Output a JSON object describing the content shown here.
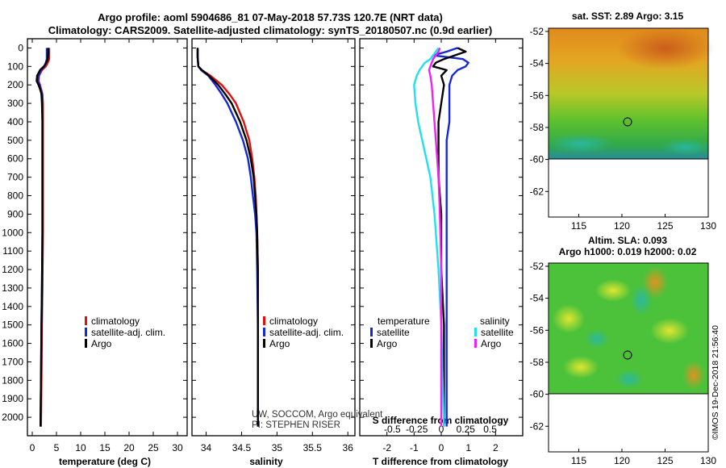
{
  "title": {
    "line1": "Argo profile: aoml 5904686_81 07-May-2018 57.73S 120.7E (NRT data)",
    "line2": "Climatology: CARS2009. Satellite-adjusted climatology: synTS_20180507.nc (0.9d earlier)"
  },
  "depth_ticks": [
    "0",
    "100",
    "200",
    "300",
    "400",
    "500",
    "600",
    "700",
    "800",
    "900",
    "1000",
    "1100",
    "1200",
    "1300",
    "1400",
    "1500",
    "1600",
    "1700",
    "1800",
    "1900",
    "2000"
  ],
  "colors": {
    "climatology": "#e01010",
    "satellite": "#1428d8",
    "argo": "#000000",
    "sat_diff": "#20e0f0",
    "argo_s_diff": "#f020f0"
  },
  "chart_data": [
    {
      "type": "line",
      "name": "temperature",
      "xlabel": "temperature (deg C)",
      "xlim": [
        -1,
        32
      ],
      "ylim": [
        2100,
        -50
      ],
      "xticks": [
        "0",
        "5",
        "10",
        "15",
        "20",
        "25",
        "30"
      ],
      "xtick_values": [
        0,
        5,
        10,
        15,
        20,
        25,
        30
      ],
      "depth": [
        0,
        30,
        60,
        80,
        100,
        120,
        150,
        180,
        200,
        230,
        250,
        300,
        400,
        500,
        700,
        1000,
        1300,
        1500,
        1800,
        2050
      ],
      "series": [
        {
          "name": "climatology",
          "values": [
            3.5,
            3.5,
            3.5,
            3.2,
            2.8,
            2.0,
            1.4,
            1.3,
            1.6,
            1.9,
            2.1,
            2.2,
            2.2,
            2.2,
            2.2,
            2.2,
            2.1,
            2.0,
            1.9,
            1.8
          ]
        },
        {
          "name": "satellite-adj. clim.",
          "values": [
            3.0,
            3.0,
            3.0,
            2.8,
            2.5,
            1.8,
            1.3,
            1.2,
            1.5,
            1.8,
            2.0,
            2.1,
            2.1,
            2.1,
            2.1,
            2.1,
            2.0,
            1.9,
            1.8,
            1.7
          ]
        },
        {
          "name": "Argo",
          "values": [
            3.3,
            3.3,
            3.2,
            2.9,
            2.4,
            1.6,
            1.0,
            0.9,
            1.3,
            1.7,
            1.9,
            2.0,
            2.1,
            2.1,
            2.1,
            2.1,
            2.0,
            1.9,
            1.8,
            1.7
          ]
        }
      ],
      "legend": [
        "climatology",
        "satellite-adj. clim.",
        "Argo"
      ]
    },
    {
      "type": "line",
      "name": "salinity",
      "xlabel": "salinity",
      "xlim": [
        33.8,
        36.1
      ],
      "ylim": [
        2100,
        -50
      ],
      "xticks": [
        "34",
        "34.5",
        "35",
        "35.5",
        "36"
      ],
      "xtick_values": [
        34,
        34.5,
        35,
        35.5,
        36
      ],
      "depth": [
        0,
        50,
        100,
        120,
        150,
        200,
        250,
        300,
        400,
        500,
        600,
        700,
        800,
        900,
        1000,
        1200,
        1500,
        1800,
        2050
      ],
      "series": [
        {
          "name": "climatology",
          "values": [
            33.88,
            33.88,
            33.89,
            33.94,
            34.06,
            34.22,
            34.33,
            34.42,
            34.53,
            34.61,
            34.65,
            34.68,
            34.7,
            34.71,
            34.72,
            34.73,
            34.73,
            34.73,
            34.73
          ]
        },
        {
          "name": "satellite-adj. clim.",
          "values": [
            33.88,
            33.88,
            33.89,
            33.93,
            34.03,
            34.13,
            34.22,
            34.3,
            34.42,
            34.52,
            34.59,
            34.63,
            34.66,
            34.69,
            34.71,
            34.72,
            34.73,
            34.73,
            34.73
          ]
        },
        {
          "name": "Argo",
          "values": [
            33.88,
            33.88,
            33.89,
            33.94,
            34.04,
            34.17,
            34.27,
            34.36,
            34.48,
            34.57,
            34.63,
            34.67,
            34.69,
            34.71,
            34.72,
            34.73,
            34.73,
            34.73,
            34.73
          ]
        }
      ],
      "legend": [
        "climatology",
        "satellite-adj. clim.",
        "Argo"
      ],
      "annotation_1": "UW, SOCCOM, Argo equivalent",
      "annotation_2": "PI: STEPHEN RISER"
    },
    {
      "type": "line",
      "name": "differences",
      "xlabel": "T difference from climatology",
      "top_label": "S difference from climatology",
      "xlim": [
        -3,
        3
      ],
      "ylim": [
        2100,
        -50
      ],
      "xticks": [
        "-2",
        "-1",
        "0",
        "1",
        "2"
      ],
      "xtick_values": [
        -2,
        -1,
        0,
        1,
        2
      ],
      "s_xticks": [
        "-0.5",
        "-0.25",
        "0",
        "0.25",
        "0.5"
      ],
      "s_xtick_values": [
        -1.8,
        -0.9,
        0,
        0.9,
        1.8
      ],
      "depth": [
        0,
        20,
        40,
        60,
        80,
        100,
        120,
        150,
        200,
        300,
        400,
        500,
        600,
        700,
        900,
        1200,
        1500,
        1800,
        2050
      ],
      "series": [
        {
          "name": "temperature satellite",
          "values": [
            0.6,
            0.2,
            -0.3,
            0.8,
            1.0,
            0.9,
            0.6,
            0.4,
            0.3,
            0.3,
            0.3,
            0.2,
            0.2,
            0.2,
            0.2,
            0.2,
            0.2,
            0.2,
            0.2
          ]
        },
        {
          "name": "temperature Argo",
          "values": [
            0.6,
            0.9,
            0.5,
            0.1,
            -0.2,
            -0.3,
            0.2,
            0.0,
            0.1,
            0.0,
            -0.1,
            -0.1,
            -0.1,
            -0.1,
            0.0,
            0.0,
            0.1,
            0.1,
            0.1
          ]
        },
        {
          "name": "salinity satellite",
          "values": [
            -0.1,
            -0.2,
            -0.3,
            -0.4,
            -0.6,
            -0.7,
            -0.8,
            -0.9,
            -1.0,
            -0.95,
            -0.85,
            -0.7,
            -0.55,
            -0.4,
            -0.25,
            -0.1,
            0.0,
            0.05,
            0.1
          ]
        },
        {
          "name": "salinity Argo",
          "values": [
            -0.05,
            -0.1,
            -0.2,
            -0.3,
            -0.35,
            -0.4,
            -0.45,
            -0.4,
            -0.35,
            -0.3,
            -0.25,
            -0.2,
            -0.15,
            -0.1,
            -0.05,
            0.0,
            0.0,
            0.0,
            0.0
          ]
        }
      ],
      "legend_temperature_title": "temperature",
      "legend_salinity_title": "salinity",
      "legend_items": [
        "satellite",
        "Argo"
      ]
    }
  ],
  "maps": {
    "sst": {
      "title": "sat. SST: 2.89 Argo: 3.15",
      "yticks": [
        "-52",
        "-54",
        "-56",
        "-58",
        "-60",
        "-62"
      ],
      "xticks": [
        "115",
        "120",
        "125",
        "130"
      ]
    },
    "sla": {
      "title1": "Altim. SLA: 0.093",
      "title2": "Argo h1000: 0.019 h2000: 0.02",
      "yticks": [
        "-52",
        "-54",
        "-56",
        "-58",
        "-60",
        "-62"
      ],
      "xticks": [
        "115",
        "120",
        "125",
        "130"
      ]
    },
    "credit": "©IMOS 19-Dec-2018 21:56:40"
  }
}
